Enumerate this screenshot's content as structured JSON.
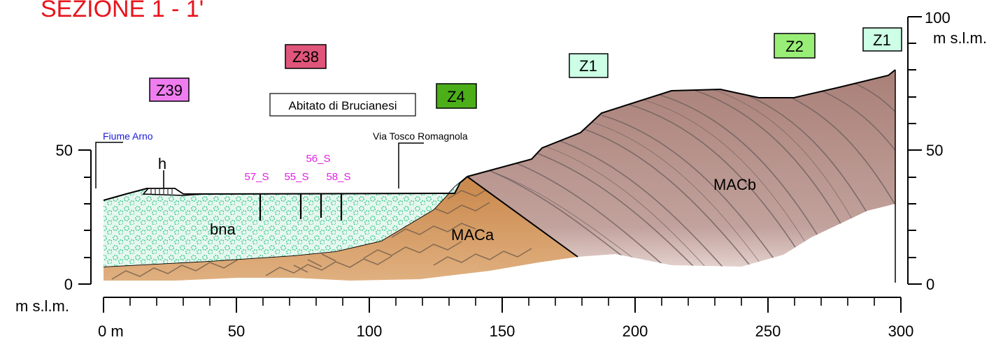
{
  "title": "SEZIONE 1 - 1'",
  "left_axis": {
    "ticks": [
      "50",
      "0"
    ],
    "unit": "m s.l.m."
  },
  "right_axis": {
    "ticks": [
      "100",
      "50",
      "0"
    ],
    "unit": "m s.l.m."
  },
  "bottom_axis": {
    "ticks": [
      "0 m",
      "50",
      "100",
      "150",
      "200",
      "250",
      "300"
    ]
  },
  "zones": [
    "Z39",
    "Z38",
    "Z4",
    "Z1",
    "Z2",
    "Z1"
  ],
  "labels": {
    "town": "Abitato di Brucianesi",
    "river": "Fiume Arno",
    "road": "Via Tosco Romagnola"
  },
  "boreholes": [
    "57_S",
    "55_S",
    "56_S",
    "58_S"
  ],
  "units": {
    "h": "h",
    "bna": "bna",
    "maca": "MACa",
    "macb": "MACb"
  },
  "colors": {
    "title": "#e8141c",
    "borehole_label": "#e020e0",
    "river_label": "#1a1adc",
    "z39": "#f07df0",
    "z38": "#e0557a",
    "z4": "#4caf1a",
    "z1": "#ccffe6",
    "z2": "#99ee77",
    "bna_fill": "#e6f7ef",
    "bna_pattern": "#36c98a",
    "maca_fill": "#cf945a",
    "macb_fill": "#b3928a"
  }
}
